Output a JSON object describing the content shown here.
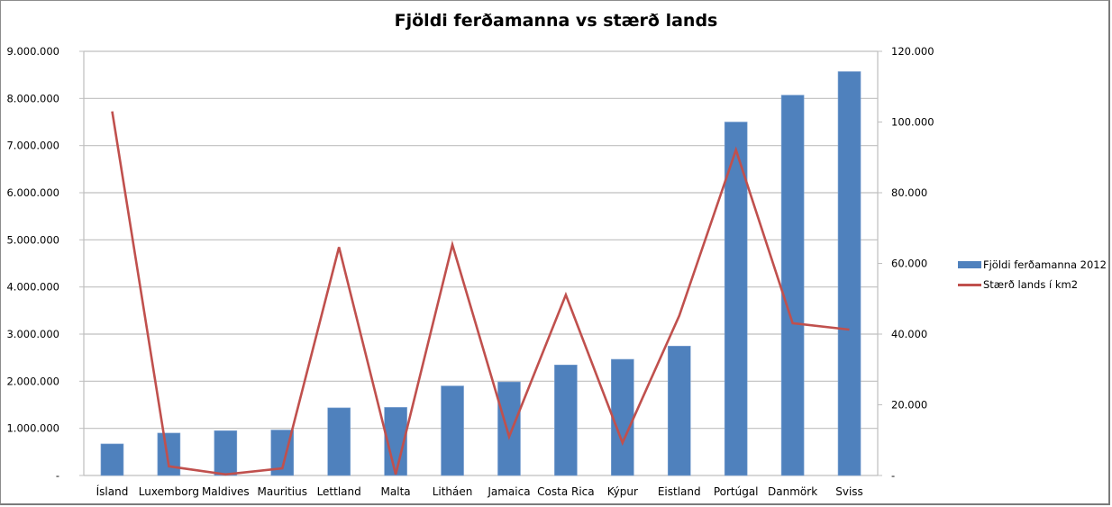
{
  "chart_data": {
    "type": "bar+line",
    "title": "Fjöldi ferðamanna vs stærð lands",
    "categories": [
      "Ísland",
      "Luxemborg",
      "Maldives",
      "Mauritius",
      "Lettland",
      "Malta",
      "Litháen",
      "Jamaica",
      "Costa Rica",
      "Kýpur",
      "Eistland",
      "Portúgal",
      "Danmörk",
      "Sviss"
    ],
    "series": [
      {
        "name": "Fjöldi ferðamanna 2012",
        "type": "bar",
        "axis": "left",
        "color": "#4f81bd",
        "values": [
          670000,
          900000,
          950000,
          965000,
          1435000,
          1445000,
          1900000,
          1985000,
          2345000,
          2465000,
          2745000,
          7500000,
          8070000,
          8570000
        ]
      },
      {
        "name": "Stærð lands í km2",
        "type": "line",
        "axis": "right",
        "color": "#c0504d",
        "values": [
          103000,
          2586,
          300,
          2040,
          64589,
          316,
          65300,
          10991,
          51100,
          9251,
          45227,
          92090,
          43094,
          41285
        ]
      }
    ],
    "y_left": {
      "ylim": [
        0,
        9000000
      ],
      "ticks": [
        0,
        1000000,
        2000000,
        3000000,
        4000000,
        5000000,
        6000000,
        7000000,
        8000000,
        9000000
      ],
      "tick_labels": [
        "-",
        "1.000.000",
        "2.000.000",
        "3.000.000",
        "4.000.000",
        "5.000.000",
        "6.000.000",
        "7.000.000",
        "8.000.000",
        "9.000.000"
      ]
    },
    "y_right": {
      "ylim": [
        0,
        120000
      ],
      "ticks": [
        0,
        20000,
        40000,
        60000,
        80000,
        100000,
        120000
      ],
      "tick_labels": [
        "-",
        "20.000",
        "40.000",
        "60.000",
        "80.000",
        "100.000",
        "120.000"
      ]
    },
    "xlabel": "",
    "ylabel": "",
    "grid": true,
    "legend_position": "right"
  },
  "legend": {
    "bar_label": "Fjöldi ferðamanna 2012",
    "line_label": "Stærð lands í km2"
  }
}
